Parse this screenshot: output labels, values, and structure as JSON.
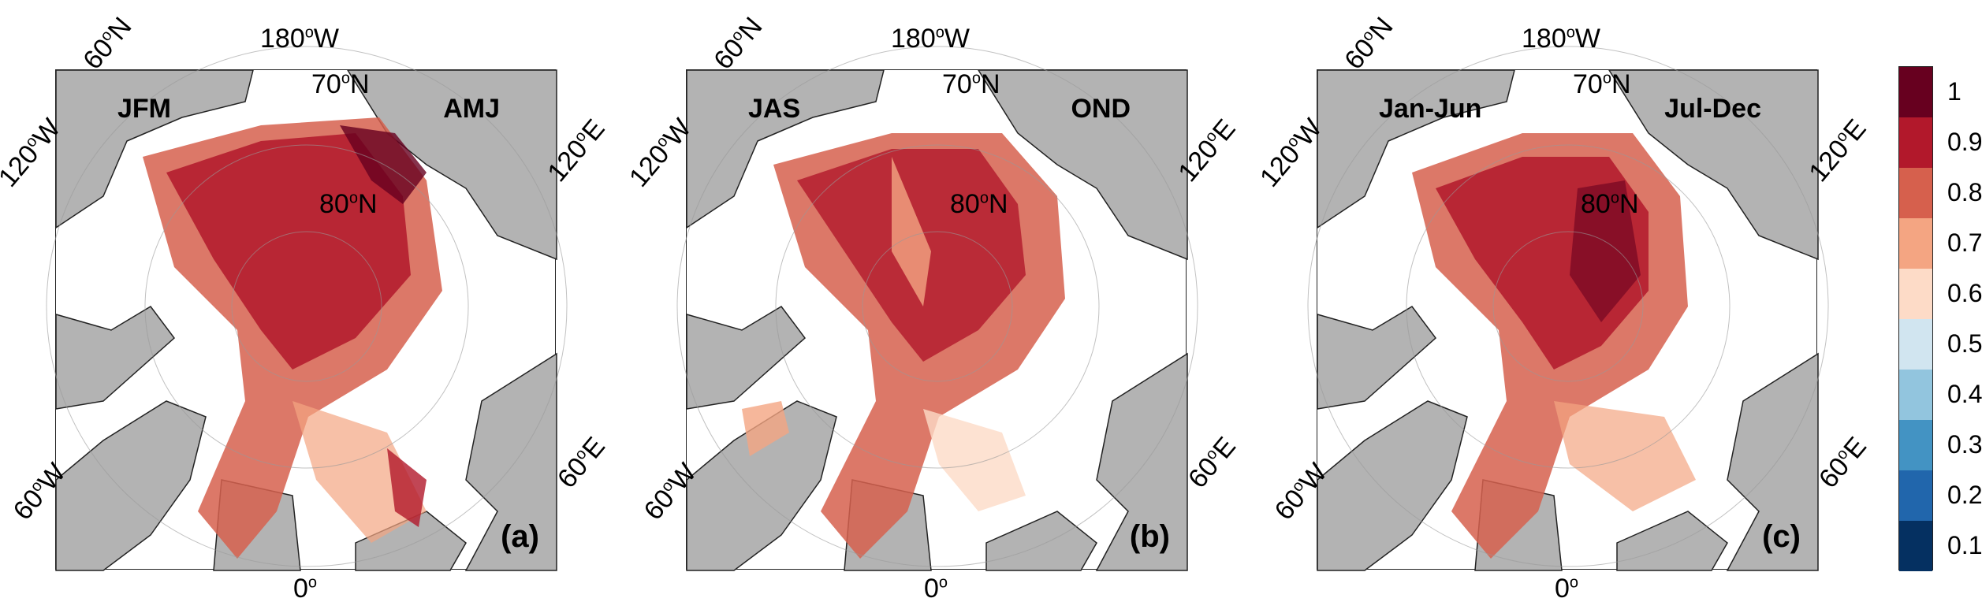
{
  "panels": [
    {
      "left_label": "JFM",
      "right_label": "AMJ",
      "tag": "(a)"
    },
    {
      "left_label": "JAS",
      "right_label": "OND",
      "tag": "(b)"
    },
    {
      "left_label": "Jan-Jun",
      "right_label": "Jul-Dec",
      "tag": "(c)"
    }
  ],
  "grid_labels": {
    "lon_180": "180",
    "lon_120w": "120",
    "lon_60w": "60",
    "lon_0": "0",
    "lon_60e": "60",
    "lon_120e": "120",
    "lat_60": "60",
    "lat_70": "70",
    "lat_80": "80",
    "deg": "o",
    "W": "W",
    "E": "E",
    "N": "N"
  },
  "colorbar": {
    "ticks": [
      "1",
      "0.9",
      "0.8",
      "0.7",
      "0.6",
      "0.5",
      "0.4",
      "0.3",
      "0.2",
      "0.1"
    ],
    "colors": [
      "#67001f",
      "#b2182b",
      "#d6604d",
      "#f4a582",
      "#fddbc7",
      "#d1e5f0",
      "#92c5de",
      "#4393c3",
      "#2166ac",
      "#053061"
    ]
  }
}
